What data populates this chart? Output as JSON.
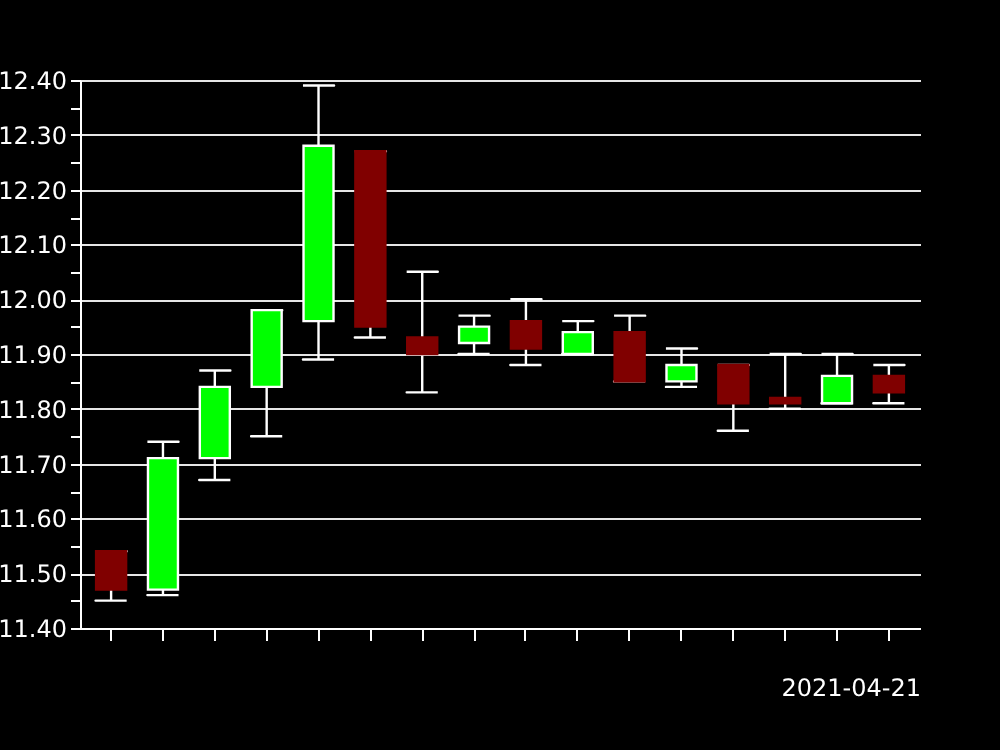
{
  "chart_data": {
    "type": "candlestick",
    "xlabel": "2021-04-21",
    "categories": [
      null,
      null,
      null,
      null,
      null,
      null,
      null,
      null,
      null,
      null,
      null,
      null,
      null,
      null,
      null,
      null
    ],
    "ohlc": [
      [
        11.54,
        11.54,
        11.45,
        11.47
      ],
      [
        11.47,
        11.74,
        11.46,
        11.71
      ],
      [
        11.71,
        11.87,
        11.67,
        11.84
      ],
      [
        11.84,
        11.98,
        11.75,
        11.98
      ],
      [
        11.96,
        12.39,
        11.89,
        12.28
      ],
      [
        12.27,
        12.27,
        11.93,
        11.95
      ],
      [
        11.93,
        12.05,
        11.83,
        11.9
      ],
      [
        11.92,
        11.97,
        11.9,
        11.95
      ],
      [
        11.96,
        12.0,
        11.88,
        11.91
      ],
      [
        11.9,
        11.96,
        11.9,
        11.94
      ],
      [
        11.94,
        11.97,
        11.85,
        11.85
      ],
      [
        11.85,
        11.91,
        11.84,
        11.88
      ],
      [
        11.88,
        11.88,
        11.76,
        11.81
      ],
      [
        11.82,
        11.9,
        11.8,
        11.81
      ],
      [
        11.81,
        11.9,
        11.81,
        11.86
      ],
      [
        11.86,
        11.88,
        11.81,
        11.83
      ]
    ],
    "colors": [
      "#800000",
      "#00ff00",
      "#00ff00",
      "#00ff00",
      "#00ff00",
      "#800000",
      "#800000",
      "#00ff00",
      "#800000",
      "#00ff00",
      "#800000",
      "#00ff00",
      "#800000",
      "#800000",
      "#00ff00",
      "#800000"
    ],
    "ylim": [
      11.4,
      12.4
    ],
    "yticks": [
      {
        "value": 11.4,
        "label": "11.40"
      },
      {
        "value": 11.45,
        "label": null
      },
      {
        "value": 11.5,
        "label": "11.50"
      },
      {
        "value": 11.55,
        "label": null
      },
      {
        "value": 11.6,
        "label": "11.60"
      },
      {
        "value": 11.65,
        "label": null
      },
      {
        "value": 11.7,
        "label": "11.70"
      },
      {
        "value": 11.75,
        "label": null
      },
      {
        "value": 11.8,
        "label": "11.80"
      },
      {
        "value": 11.85,
        "label": null
      },
      {
        "value": 11.9,
        "label": "11.90"
      },
      {
        "value": 11.95,
        "label": null
      },
      {
        "value": 12.0,
        "label": "12.00"
      },
      {
        "value": 12.05,
        "label": null
      },
      {
        "value": 12.1,
        "label": "12.10"
      },
      {
        "value": 12.15,
        "label": null
      },
      {
        "value": 12.2,
        "label": "12.20"
      },
      {
        "value": 12.25,
        "label": null
      },
      {
        "value": 12.3,
        "label": "12.30"
      },
      {
        "value": 12.35,
        "label": null
      },
      {
        "value": 12.4,
        "label": "12.40"
      }
    ],
    "grid": "y",
    "tick_labels": "y"
  }
}
